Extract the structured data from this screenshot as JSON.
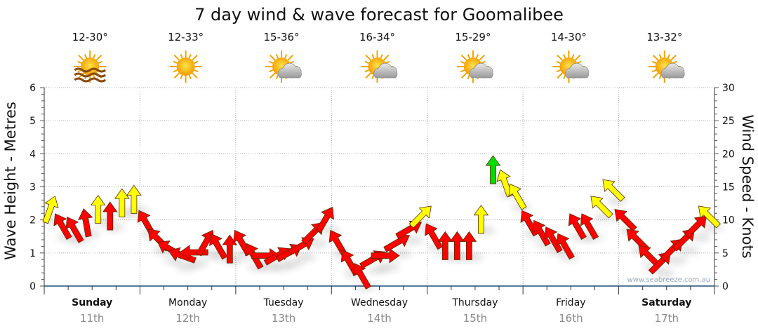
{
  "chart_data": {
    "type": "scatter",
    "title": "7 day wind & wave forecast for Goomalibee",
    "ylabel_left": "Wave Height - Metres",
    "ylabel_right": "Wind Speed - Knots",
    "ylim_left": [
      0,
      6
    ],
    "ylim_right": [
      0,
      30
    ],
    "yticks_left": [
      "0",
      "1",
      "2",
      "3",
      "4",
      "5",
      "6"
    ],
    "yticks_right": [
      "0",
      "5",
      "10",
      "15",
      "20",
      "25",
      "30"
    ],
    "grid": true,
    "watermark": "www.seabreeze.com.au",
    "days": [
      {
        "day": "Sunday",
        "date": "11th",
        "temp": "12-30°",
        "icon": "sun-haze-icon",
        "bold": true
      },
      {
        "day": "Monday",
        "date": "12th",
        "temp": "12-33°",
        "icon": "sun-icon",
        "bold": false
      },
      {
        "day": "Tuesday",
        "date": "13th",
        "temp": "15-36°",
        "icon": "sun-cloud-icon",
        "bold": false
      },
      {
        "day": "Wednesday",
        "date": "14th",
        "temp": "16-34°",
        "icon": "sun-cloud-icon",
        "bold": false
      },
      {
        "day": "Thursday",
        "date": "15th",
        "temp": "15-29°",
        "icon": "sun-cloud-icon",
        "bold": false
      },
      {
        "day": "Friday",
        "date": "16th",
        "temp": "14-30°",
        "icon": "sun-cloud-icon",
        "bold": false
      },
      {
        "day": "Saturday",
        "date": "17th",
        "temp": "13-32°",
        "icon": "sun-cloud-icon",
        "bold": true
      }
    ],
    "colors": {
      "low": "#ff0000",
      "mid": "#ffff00",
      "high": "#00dd00",
      "axis": "#1f4e79"
    },
    "wind": {
      "hours": [
        0,
        3,
        6,
        9,
        12,
        15,
        18,
        21,
        24,
        27,
        30,
        33,
        36,
        39,
        42,
        45,
        48,
        51,
        54,
        57,
        60,
        63,
        66,
        69,
        72,
        75,
        78,
        81,
        84,
        87,
        90,
        93,
        96,
        99,
        102,
        105,
        108,
        111,
        114,
        117,
        120,
        123,
        126,
        129,
        132,
        135,
        138,
        141,
        144,
        147,
        150,
        153,
        156,
        159,
        162,
        165
      ],
      "knots": [
        13.5,
        11,
        10.5,
        11.5,
        13.5,
        12.5,
        14.5,
        15,
        11.5,
        9,
        7.5,
        6.5,
        7,
        8.5,
        8,
        7.5,
        8.5,
        6.5,
        6.5,
        6.5,
        7,
        8,
        10,
        12,
        8.5,
        5.5,
        3.5,
        6,
        6.5,
        8.5,
        10.5,
        12.5,
        9.5,
        8,
        8,
        8,
        12,
        19.5,
        17.5,
        15.5,
        11.5,
        10,
        9,
        8,
        11,
        11,
        14,
        16.5,
        12,
        9,
        6.5,
        5.5,
        7.5,
        9,
        11,
        12.5
      ],
      "direction": [
        20,
        330,
        330,
        350,
        0,
        0,
        0,
        0,
        330,
        315,
        300,
        290,
        270,
        30,
        330,
        0,
        330,
        330,
        90,
        60,
        60,
        60,
        45,
        30,
        330,
        330,
        330,
        60,
        90,
        60,
        60,
        45,
        330,
        0,
        0,
        0,
        0,
        0,
        340,
        330,
        330,
        330,
        330,
        330,
        330,
        330,
        315,
        315,
        315,
        315,
        315,
        45,
        45,
        45,
        45,
        315
      ],
      "band": [
        "mid",
        "low",
        "low",
        "low",
        "mid",
        "low",
        "mid",
        "mid",
        "low",
        "low",
        "low",
        "low",
        "low",
        "low",
        "low",
        "low",
        "low",
        "low",
        "low",
        "low",
        "low",
        "low",
        "low",
        "low",
        "low",
        "low",
        "low",
        "low",
        "low",
        "low",
        "low",
        "mid",
        "low",
        "low",
        "low",
        "low",
        "mid",
        "high",
        "mid",
        "mid",
        "low",
        "low",
        "low",
        "low",
        "low",
        "low",
        "mid",
        "mid",
        "low",
        "low",
        "low",
        "low",
        "low",
        "low",
        "low",
        "mid"
      ]
    }
  }
}
